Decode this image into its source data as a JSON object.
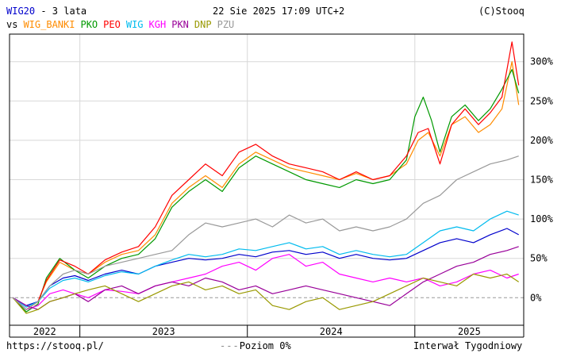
{
  "header": {
    "symbol": "WIG20",
    "period": " - 3 lata",
    "datetime": "22 Sie 2025 17:09 UTC+2",
    "copyright": "(C)Stooq",
    "vs_label": "vs"
  },
  "footer": {
    "url": "https://stooq.pl/",
    "zero_level": "Poziom 0%",
    "interval": "Interwał Tygodniowy"
  },
  "colors": {
    "WIG20": "#0000cc",
    "WIG_BANKI": "#ff8c00",
    "PKO": "#009900",
    "PEO": "#ff0000",
    "WIG": "#00bbee",
    "KGH": "#ff00ff",
    "PKN": "#990099",
    "DNP": "#999900",
    "PZU": "#999999"
  },
  "chart_data": {
    "type": "line",
    "x_ticks": [
      "2022",
      "2023",
      "2024",
      "2025"
    ],
    "y_ticks": [
      "0%",
      "50%",
      "100%",
      "150%",
      "200%",
      "250%",
      "300%"
    ],
    "ylim": [
      -35,
      335
    ],
    "x_range": [
      2022.58,
      2025.65
    ],
    "grid": true,
    "legend_placement": "top-left",
    "series": [
      {
        "name": "WIG20",
        "x": [
          2022.6,
          2022.68,
          2022.75,
          2022.82,
          2022.9,
          2022.97,
          2023.05,
          2023.15,
          2023.25,
          2023.35,
          2023.45,
          2023.55,
          2023.65,
          2023.75,
          2023.85,
          2023.95,
          2024.05,
          2024.15,
          2024.25,
          2024.35,
          2024.45,
          2024.55,
          2024.65,
          2024.75,
          2024.85,
          2024.95,
          2025.05,
          2025.15,
          2025.25,
          2025.35,
          2025.45,
          2025.55,
          2025.62
        ],
        "values": [
          0,
          -10,
          -5,
          15,
          25,
          28,
          22,
          30,
          35,
          30,
          40,
          45,
          50,
          48,
          50,
          55,
          52,
          58,
          60,
          55,
          58,
          50,
          55,
          50,
          48,
          50,
          60,
          70,
          75,
          70,
          80,
          88,
          80
        ]
      },
      {
        "name": "WIG_BANKI",
        "x": [
          2022.6,
          2022.68,
          2022.75,
          2022.8,
          2022.88,
          2022.97,
          2023.05,
          2023.15,
          2023.25,
          2023.35,
          2023.45,
          2023.55,
          2023.65,
          2023.75,
          2023.85,
          2023.95,
          2024.05,
          2024.15,
          2024.25,
          2024.35,
          2024.45,
          2024.55,
          2024.65,
          2024.75,
          2024.85,
          2024.95,
          2025.02,
          2025.08,
          2025.15,
          2025.22,
          2025.3,
          2025.38,
          2025.45,
          2025.52,
          2025.58,
          2025.62
        ],
        "values": [
          0,
          -15,
          -5,
          20,
          45,
          35,
          30,
          45,
          55,
          60,
          80,
          120,
          140,
          155,
          140,
          170,
          185,
          175,
          165,
          160,
          155,
          150,
          158,
          150,
          155,
          170,
          200,
          210,
          180,
          220,
          230,
          210,
          220,
          240,
          300,
          245
        ]
      },
      {
        "name": "PKO",
        "x": [
          2022.6,
          2022.68,
          2022.75,
          2022.8,
          2022.88,
          2022.97,
          2023.05,
          2023.15,
          2023.25,
          2023.35,
          2023.45,
          2023.55,
          2023.65,
          2023.75,
          2023.85,
          2023.95,
          2024.05,
          2024.15,
          2024.25,
          2024.35,
          2024.45,
          2024.55,
          2024.65,
          2024.75,
          2024.85,
          2024.95,
          2025.0,
          2025.05,
          2025.1,
          2025.15,
          2025.22,
          2025.3,
          2025.38,
          2025.45,
          2025.52,
          2025.58,
          2025.62
        ],
        "values": [
          0,
          -18,
          -8,
          25,
          50,
          35,
          25,
          40,
          50,
          55,
          75,
          115,
          135,
          150,
          135,
          165,
          180,
          170,
          160,
          150,
          145,
          140,
          150,
          145,
          150,
          175,
          230,
          255,
          225,
          185,
          230,
          245,
          225,
          240,
          265,
          290,
          260
        ]
      },
      {
        "name": "PEO",
        "x": [
          2022.6,
          2022.68,
          2022.75,
          2022.8,
          2022.88,
          2022.97,
          2023.05,
          2023.15,
          2023.25,
          2023.35,
          2023.45,
          2023.55,
          2023.65,
          2023.75,
          2023.85,
          2023.95,
          2024.05,
          2024.15,
          2024.25,
          2024.35,
          2024.45,
          2024.55,
          2024.65,
          2024.75,
          2024.85,
          2024.95,
          2025.02,
          2025.08,
          2025.15,
          2025.22,
          2025.3,
          2025.38,
          2025.45,
          2025.52,
          2025.58,
          2025.62
        ],
        "values": [
          0,
          -15,
          -5,
          22,
          48,
          40,
          30,
          48,
          58,
          65,
          90,
          130,
          150,
          170,
          155,
          185,
          195,
          180,
          170,
          165,
          160,
          150,
          160,
          150,
          155,
          180,
          210,
          215,
          170,
          220,
          240,
          220,
          235,
          255,
          325,
          270
        ]
      },
      {
        "name": "WIG",
        "x": [
          2022.6,
          2022.68,
          2022.75,
          2022.82,
          2022.9,
          2022.97,
          2023.05,
          2023.15,
          2023.25,
          2023.35,
          2023.45,
          2023.55,
          2023.65,
          2023.75,
          2023.85,
          2023.95,
          2024.05,
          2024.15,
          2024.25,
          2024.35,
          2024.45,
          2024.55,
          2024.65,
          2024.75,
          2024.85,
          2024.95,
          2025.05,
          2025.15,
          2025.25,
          2025.35,
          2025.45,
          2025.55,
          2025.62
        ],
        "values": [
          0,
          -12,
          -5,
          12,
          22,
          25,
          20,
          28,
          33,
          30,
          40,
          48,
          55,
          52,
          55,
          62,
          60,
          65,
          70,
          62,
          65,
          55,
          60,
          55,
          52,
          55,
          70,
          85,
          90,
          85,
          100,
          110,
          105
        ]
      },
      {
        "name": "KGH",
        "x": [
          2022.6,
          2022.68,
          2022.75,
          2022.82,
          2022.9,
          2022.97,
          2023.05,
          2023.15,
          2023.25,
          2023.35,
          2023.45,
          2023.55,
          2023.65,
          2023.75,
          2023.85,
          2023.95,
          2024.05,
          2024.15,
          2024.25,
          2024.35,
          2024.45,
          2024.55,
          2024.65,
          2024.75,
          2024.85,
          2024.95,
          2025.05,
          2025.15,
          2025.25,
          2025.35,
          2025.45,
          2025.55,
          2025.62
        ],
        "values": [
          0,
          -15,
          -10,
          5,
          10,
          5,
          0,
          10,
          8,
          5,
          15,
          20,
          25,
          30,
          40,
          45,
          35,
          50,
          55,
          40,
          45,
          30,
          25,
          20,
          25,
          20,
          25,
          15,
          20,
          30,
          35,
          25,
          30
        ]
      },
      {
        "name": "PKN",
        "x": [
          2022.6,
          2022.68,
          2022.75,
          2022.82,
          2022.9,
          2022.97,
          2023.05,
          2023.15,
          2023.25,
          2023.35,
          2023.45,
          2023.55,
          2023.65,
          2023.75,
          2023.85,
          2023.95,
          2024.05,
          2024.15,
          2024.25,
          2024.35,
          2024.45,
          2024.55,
          2024.65,
          2024.75,
          2024.85,
          2024.95,
          2025.05,
          2025.15,
          2025.25,
          2025.35,
          2025.45,
          2025.55,
          2025.62
        ],
        "values": [
          0,
          -10,
          -15,
          -5,
          0,
          5,
          -5,
          10,
          15,
          5,
          15,
          20,
          15,
          25,
          20,
          10,
          15,
          5,
          10,
          15,
          10,
          5,
          0,
          -5,
          -10,
          5,
          20,
          30,
          40,
          45,
          55,
          60,
          65
        ]
      },
      {
        "name": "DNP",
        "x": [
          2022.6,
          2022.68,
          2022.75,
          2022.82,
          2022.9,
          2022.97,
          2023.05,
          2023.15,
          2023.25,
          2023.35,
          2023.45,
          2023.55,
          2023.65,
          2023.75,
          2023.85,
          2023.95,
          2024.05,
          2024.15,
          2024.25,
          2024.35,
          2024.45,
          2024.55,
          2024.65,
          2024.75,
          2024.85,
          2024.95,
          2025.05,
          2025.15,
          2025.25,
          2025.35,
          2025.45,
          2025.55,
          2025.62
        ],
        "values": [
          0,
          -20,
          -15,
          -5,
          0,
          5,
          10,
          15,
          5,
          -5,
          5,
          15,
          20,
          10,
          15,
          5,
          10,
          -10,
          -15,
          -5,
          0,
          -15,
          -10,
          -5,
          5,
          15,
          25,
          20,
          15,
          30,
          25,
          30,
          20
        ]
      },
      {
        "name": "PZU",
        "x": [
          2022.6,
          2022.68,
          2022.75,
          2022.82,
          2022.9,
          2022.97,
          2023.05,
          2023.15,
          2023.25,
          2023.35,
          2023.45,
          2023.55,
          2023.65,
          2023.75,
          2023.85,
          2023.95,
          2024.05,
          2024.15,
          2024.25,
          2024.35,
          2024.45,
          2024.55,
          2024.65,
          2024.75,
          2024.85,
          2024.95,
          2025.05,
          2025.15,
          2025.25,
          2025.35,
          2025.45,
          2025.55,
          2025.62
        ],
        "values": [
          0,
          -15,
          -5,
          15,
          30,
          35,
          30,
          40,
          45,
          50,
          55,
          60,
          80,
          95,
          90,
          95,
          100,
          90,
          105,
          95,
          100,
          85,
          90,
          85,
          90,
          100,
          120,
          130,
          150,
          160,
          170,
          175,
          180
        ]
      }
    ]
  }
}
